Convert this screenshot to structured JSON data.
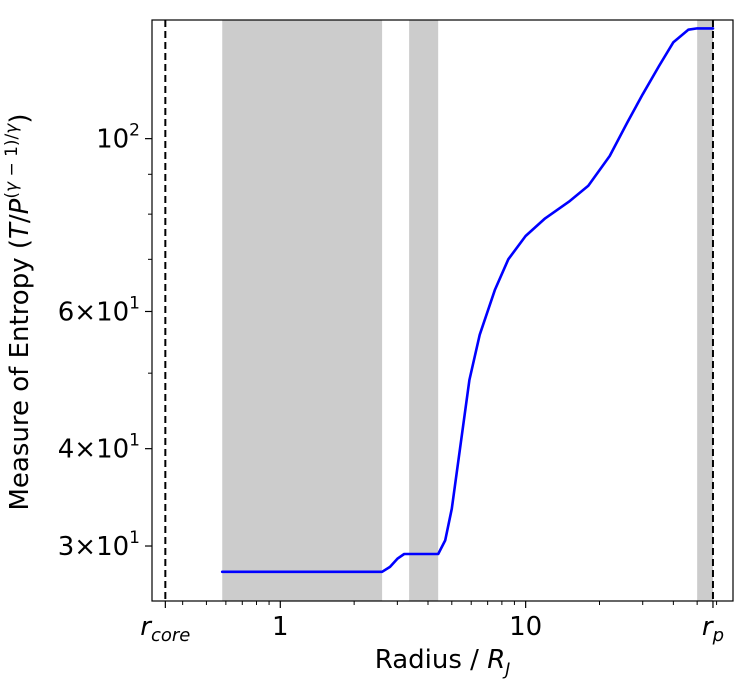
{
  "chart_data": {
    "type": "line",
    "title": "",
    "xlabel": "Radius / R_J",
    "ylabel": "Measure of Entropy (T/P^((γ−1)/γ))",
    "x_scale": "log",
    "y_scale": "log",
    "xlim": [
      0.3,
      70
    ],
    "ylim": [
      25.5,
      142
    ],
    "grid": false,
    "x_ticks": [
      {
        "value": 0.34,
        "label_main": "r",
        "label_sub": "core"
      },
      {
        "value": 1,
        "label_main": "1",
        "label_sub": ""
      },
      {
        "value": 10,
        "label_main": "10",
        "label_sub": ""
      },
      {
        "value": 58,
        "label_main": "r",
        "label_sub": "p"
      }
    ],
    "y_ticks": [
      {
        "value": 30,
        "label_main": "3×10",
        "label_exp": "1"
      },
      {
        "value": 40,
        "label_main": "4×10",
        "label_exp": "1"
      },
      {
        "value": 60,
        "label_main": "6×10",
        "label_exp": "1"
      },
      {
        "value": 100,
        "label_main": "10",
        "label_exp": "2"
      }
    ],
    "vertical_lines": [
      {
        "value": 0.34,
        "style": "dashed",
        "color": "#000000"
      },
      {
        "value": 58,
        "style": "dashed",
        "color": "#000000"
      }
    ],
    "shaded_regions": [
      {
        "x0": 0.58,
        "x1": 2.6,
        "color": "#cccccc"
      },
      {
        "x0": 3.35,
        "x1": 4.4,
        "color": "#cccccc"
      },
      {
        "x0": 50,
        "x1": 58,
        "color": "#cccccc"
      }
    ],
    "series": [
      {
        "color": "#0000ff",
        "x": [
          0.58,
          1,
          2.0,
          2.6,
          2.8,
          3.0,
          3.2,
          3.4,
          4.0,
          4.4,
          4.7,
          5.0,
          5.4,
          5.9,
          6.5,
          7.5,
          8.5,
          10,
          12,
          15,
          18,
          22,
          26,
          30,
          35,
          40,
          46,
          50,
          58
        ],
        "y": [
          27.8,
          27.8,
          27.8,
          27.8,
          28.2,
          28.9,
          29.3,
          29.3,
          29.3,
          29.3,
          30.5,
          33.5,
          40,
          49,
          56,
          64,
          70,
          75,
          79,
          83,
          87,
          95,
          105,
          114,
          124,
          133,
          138,
          138.5,
          138.5
        ]
      }
    ]
  }
}
